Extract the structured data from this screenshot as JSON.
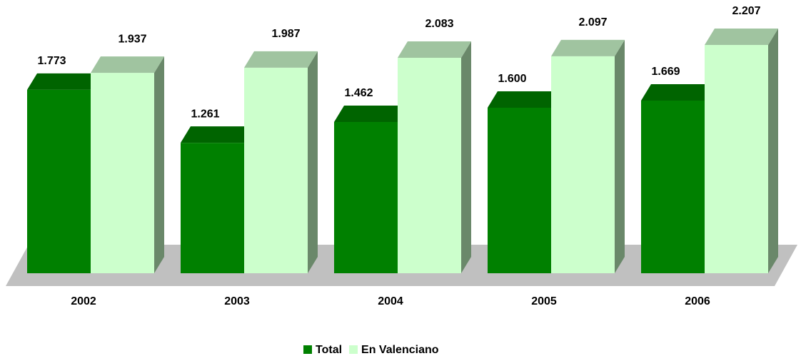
{
  "chart_data": {
    "type": "bar3d",
    "categories": [
      "2002",
      "2003",
      "2004",
      "2005",
      "2006"
    ],
    "series": [
      {
        "name": "Total",
        "color": "#008000",
        "values": [
          1773,
          1261,
          1462,
          1600,
          1669
        ],
        "value_labels": [
          "1.773",
          "1.261",
          "1.462",
          "1.600",
          "1.669"
        ]
      },
      {
        "name": "En Valenciano",
        "color": "#ccffcc",
        "values": [
          1937,
          1987,
          2083,
          2097,
          2207
        ],
        "value_labels": [
          "1.937",
          "1.987",
          "2.083",
          "2.097",
          "2.207"
        ]
      }
    ]
  }
}
